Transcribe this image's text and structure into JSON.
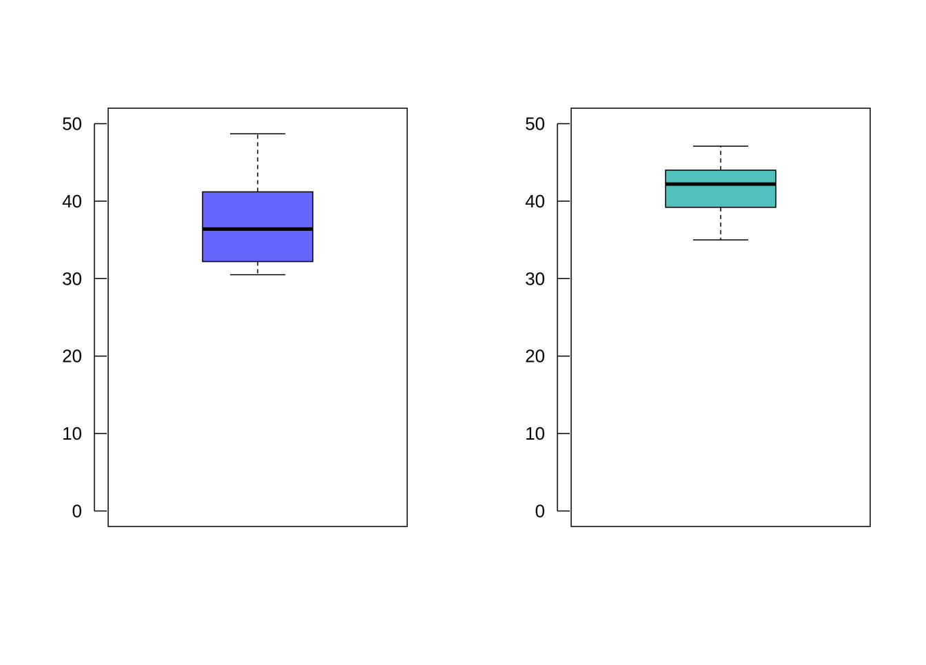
{
  "chart_data": [
    {
      "type": "box",
      "ylim": [
        -2,
        52
      ],
      "yticks": [
        0,
        10,
        20,
        30,
        40,
        50
      ],
      "ytick_labels": [
        "0",
        "10",
        "20",
        "30",
        "40",
        "50"
      ],
      "box": {
        "whisker_low": 30.5,
        "q1": 32.2,
        "median": 36.4,
        "q3": 41.2,
        "whisker_high": 48.7
      },
      "fill_color": "#6666ff",
      "grid": false
    },
    {
      "type": "box",
      "ylim": [
        -2,
        52
      ],
      "yticks": [
        0,
        10,
        20,
        30,
        40,
        50
      ],
      "ytick_labels": [
        "0",
        "10",
        "20",
        "30",
        "40",
        "50"
      ],
      "box": {
        "whisker_low": 35.0,
        "q1": 39.2,
        "median": 42.2,
        "q3": 44.0,
        "whisker_high": 47.1
      },
      "fill_color": "#4fc0bb",
      "grid": false
    }
  ]
}
